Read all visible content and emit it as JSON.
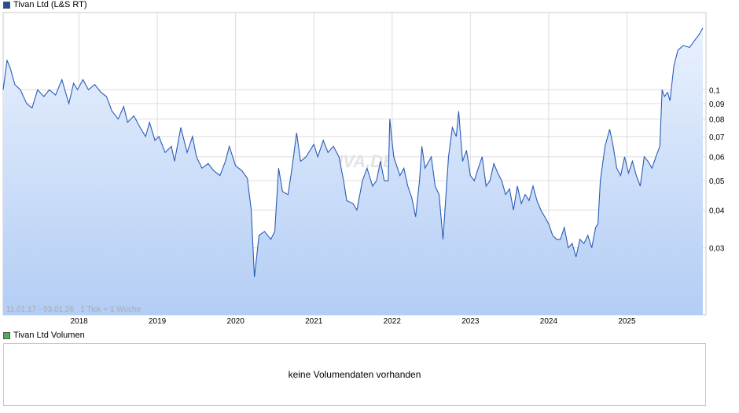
{
  "price_legend": {
    "label": "Tivan Ltd (L&S RT)",
    "color": "#1f4f9c"
  },
  "volume_legend": {
    "label": "Tivan Ltd Volumen",
    "color": "#4caf50"
  },
  "info_text": "11.01.17 - 03.01.26   1 Tick = 1 Woche",
  "watermark": "ARIVA.DE",
  "volume_message": "keine Volumendaten vorhanden",
  "colors": {
    "line": "#2a5cb8",
    "fill_top": "#e9f1fd",
    "fill_bottom": "#b3cdf5",
    "grid": "#dcdcdc"
  },
  "chart_data": {
    "type": "area",
    "title": "Tivan Ltd (L&S RT)",
    "scale": "log",
    "grid": true,
    "x_range": [
      2017.03,
      2026.01
    ],
    "y_range": [
      0.018,
      0.18
    ],
    "x_ticks": [
      {
        "value": 2018,
        "label": "2018"
      },
      {
        "value": 2019,
        "label": "2019"
      },
      {
        "value": 2020,
        "label": "2020"
      },
      {
        "value": 2021,
        "label": "2021"
      },
      {
        "value": 2022,
        "label": "2022"
      },
      {
        "value": 2023,
        "label": "2023"
      },
      {
        "value": 2024,
        "label": "2024"
      },
      {
        "value": 2025,
        "label": "2025"
      }
    ],
    "y_ticks": [
      {
        "value": 0.03,
        "label": "0,03"
      },
      {
        "value": 0.04,
        "label": "0,04"
      },
      {
        "value": 0.05,
        "label": "0,05"
      },
      {
        "value": 0.06,
        "label": "0,06"
      },
      {
        "value": 0.07,
        "label": "0,07"
      },
      {
        "value": 0.08,
        "label": "0,08"
      },
      {
        "value": 0.09,
        "label": "0,09"
      },
      {
        "value": 0.1,
        "label": "0,1"
      }
    ],
    "points": [
      [
        2017.03,
        0.1
      ],
      [
        2017.08,
        0.125
      ],
      [
        2017.12,
        0.118
      ],
      [
        2017.18,
        0.104
      ],
      [
        2017.25,
        0.1
      ],
      [
        2017.33,
        0.09
      ],
      [
        2017.4,
        0.087
      ],
      [
        2017.47,
        0.1
      ],
      [
        2017.55,
        0.095
      ],
      [
        2017.62,
        0.1
      ],
      [
        2017.7,
        0.096
      ],
      [
        2017.78,
        0.108
      ],
      [
        2017.87,
        0.09
      ],
      [
        2017.93,
        0.105
      ],
      [
        2017.98,
        0.1
      ],
      [
        2018.05,
        0.108
      ],
      [
        2018.12,
        0.1
      ],
      [
        2018.2,
        0.104
      ],
      [
        2018.28,
        0.098
      ],
      [
        2018.35,
        0.095
      ],
      [
        2018.42,
        0.085
      ],
      [
        2018.5,
        0.08
      ],
      [
        2018.57,
        0.088
      ],
      [
        2018.62,
        0.078
      ],
      [
        2018.7,
        0.082
      ],
      [
        2018.78,
        0.075
      ],
      [
        2018.85,
        0.07
      ],
      [
        2018.9,
        0.078
      ],
      [
        2018.97,
        0.068
      ],
      [
        2019.02,
        0.07
      ],
      [
        2019.1,
        0.062
      ],
      [
        2019.18,
        0.065
      ],
      [
        2019.22,
        0.058
      ],
      [
        2019.3,
        0.075
      ],
      [
        2019.38,
        0.062
      ],
      [
        2019.45,
        0.07
      ],
      [
        2019.5,
        0.06
      ],
      [
        2019.57,
        0.055
      ],
      [
        2019.65,
        0.057
      ],
      [
        2019.72,
        0.054
      ],
      [
        2019.8,
        0.052
      ],
      [
        2019.87,
        0.058
      ],
      [
        2019.92,
        0.065
      ],
      [
        2020.0,
        0.056
      ],
      [
        2020.08,
        0.054
      ],
      [
        2020.15,
        0.051
      ],
      [
        2020.2,
        0.04
      ],
      [
        2020.24,
        0.024
      ],
      [
        2020.3,
        0.033
      ],
      [
        2020.37,
        0.034
      ],
      [
        2020.45,
        0.032
      ],
      [
        2020.5,
        0.034
      ],
      [
        2020.55,
        0.055
      ],
      [
        2020.6,
        0.046
      ],
      [
        2020.67,
        0.045
      ],
      [
        2020.72,
        0.055
      ],
      [
        2020.78,
        0.072
      ],
      [
        2020.83,
        0.058
      ],
      [
        2020.9,
        0.06
      ],
      [
        2020.95,
        0.063
      ],
      [
        2021.0,
        0.066
      ],
      [
        2021.05,
        0.06
      ],
      [
        2021.12,
        0.068
      ],
      [
        2021.18,
        0.062
      ],
      [
        2021.25,
        0.065
      ],
      [
        2021.32,
        0.06
      ],
      [
        2021.38,
        0.05
      ],
      [
        2021.42,
        0.043
      ],
      [
        2021.5,
        0.042
      ],
      [
        2021.55,
        0.04
      ],
      [
        2021.62,
        0.05
      ],
      [
        2021.68,
        0.055
      ],
      [
        2021.75,
        0.048
      ],
      [
        2021.8,
        0.05
      ],
      [
        2021.85,
        0.058
      ],
      [
        2021.9,
        0.05
      ],
      [
        2021.95,
        0.05
      ],
      [
        2021.97,
        0.08
      ],
      [
        2022.02,
        0.06
      ],
      [
        2022.1,
        0.052
      ],
      [
        2022.15,
        0.055
      ],
      [
        2022.2,
        0.048
      ],
      [
        2022.25,
        0.044
      ],
      [
        2022.3,
        0.038
      ],
      [
        2022.35,
        0.05
      ],
      [
        2022.38,
        0.065
      ],
      [
        2022.42,
        0.055
      ],
      [
        2022.5,
        0.06
      ],
      [
        2022.55,
        0.048
      ],
      [
        2022.6,
        0.045
      ],
      [
        2022.65,
        0.032
      ],
      [
        2022.72,
        0.06
      ],
      [
        2022.77,
        0.075
      ],
      [
        2022.82,
        0.07
      ],
      [
        2022.85,
        0.085
      ],
      [
        2022.9,
        0.058
      ],
      [
        2022.95,
        0.063
      ],
      [
        2023.0,
        0.052
      ],
      [
        2023.05,
        0.05
      ],
      [
        2023.1,
        0.055
      ],
      [
        2023.15,
        0.06
      ],
      [
        2023.2,
        0.048
      ],
      [
        2023.25,
        0.05
      ],
      [
        2023.3,
        0.057
      ],
      [
        2023.35,
        0.053
      ],
      [
        2023.4,
        0.05
      ],
      [
        2023.45,
        0.045
      ],
      [
        2023.5,
        0.047
      ],
      [
        2023.55,
        0.04
      ],
      [
        2023.6,
        0.048
      ],
      [
        2023.65,
        0.042
      ],
      [
        2023.7,
        0.045
      ],
      [
        2023.75,
        0.043
      ],
      [
        2023.8,
        0.048
      ],
      [
        2023.85,
        0.043
      ],
      [
        2023.9,
        0.04
      ],
      [
        2023.95,
        0.038
      ],
      [
        2024.0,
        0.036
      ],
      [
        2024.05,
        0.033
      ],
      [
        2024.1,
        0.032
      ],
      [
        2024.15,
        0.032
      ],
      [
        2024.2,
        0.035
      ],
      [
        2024.25,
        0.03
      ],
      [
        2024.3,
        0.031
      ],
      [
        2024.35,
        0.028
      ],
      [
        2024.4,
        0.032
      ],
      [
        2024.45,
        0.031
      ],
      [
        2024.5,
        0.033
      ],
      [
        2024.55,
        0.03
      ],
      [
        2024.6,
        0.035
      ],
      [
        2024.63,
        0.036
      ],
      [
        2024.66,
        0.05
      ],
      [
        2024.72,
        0.065
      ],
      [
        2024.78,
        0.074
      ],
      [
        2024.82,
        0.066
      ],
      [
        2024.87,
        0.055
      ],
      [
        2024.92,
        0.052
      ],
      [
        2024.97,
        0.06
      ],
      [
        2025.02,
        0.053
      ],
      [
        2025.07,
        0.058
      ],
      [
        2025.12,
        0.052
      ],
      [
        2025.17,
        0.048
      ],
      [
        2025.22,
        0.06
      ],
      [
        2025.27,
        0.058
      ],
      [
        2025.32,
        0.055
      ],
      [
        2025.37,
        0.06
      ],
      [
        2025.42,
        0.065
      ],
      [
        2025.45,
        0.1
      ],
      [
        2025.48,
        0.095
      ],
      [
        2025.52,
        0.098
      ],
      [
        2025.55,
        0.092
      ],
      [
        2025.6,
        0.12
      ],
      [
        2025.65,
        0.135
      ],
      [
        2025.72,
        0.14
      ],
      [
        2025.8,
        0.138
      ],
      [
        2025.86,
        0.145
      ],
      [
        2025.92,
        0.152
      ],
      [
        2025.97,
        0.16
      ]
    ]
  }
}
